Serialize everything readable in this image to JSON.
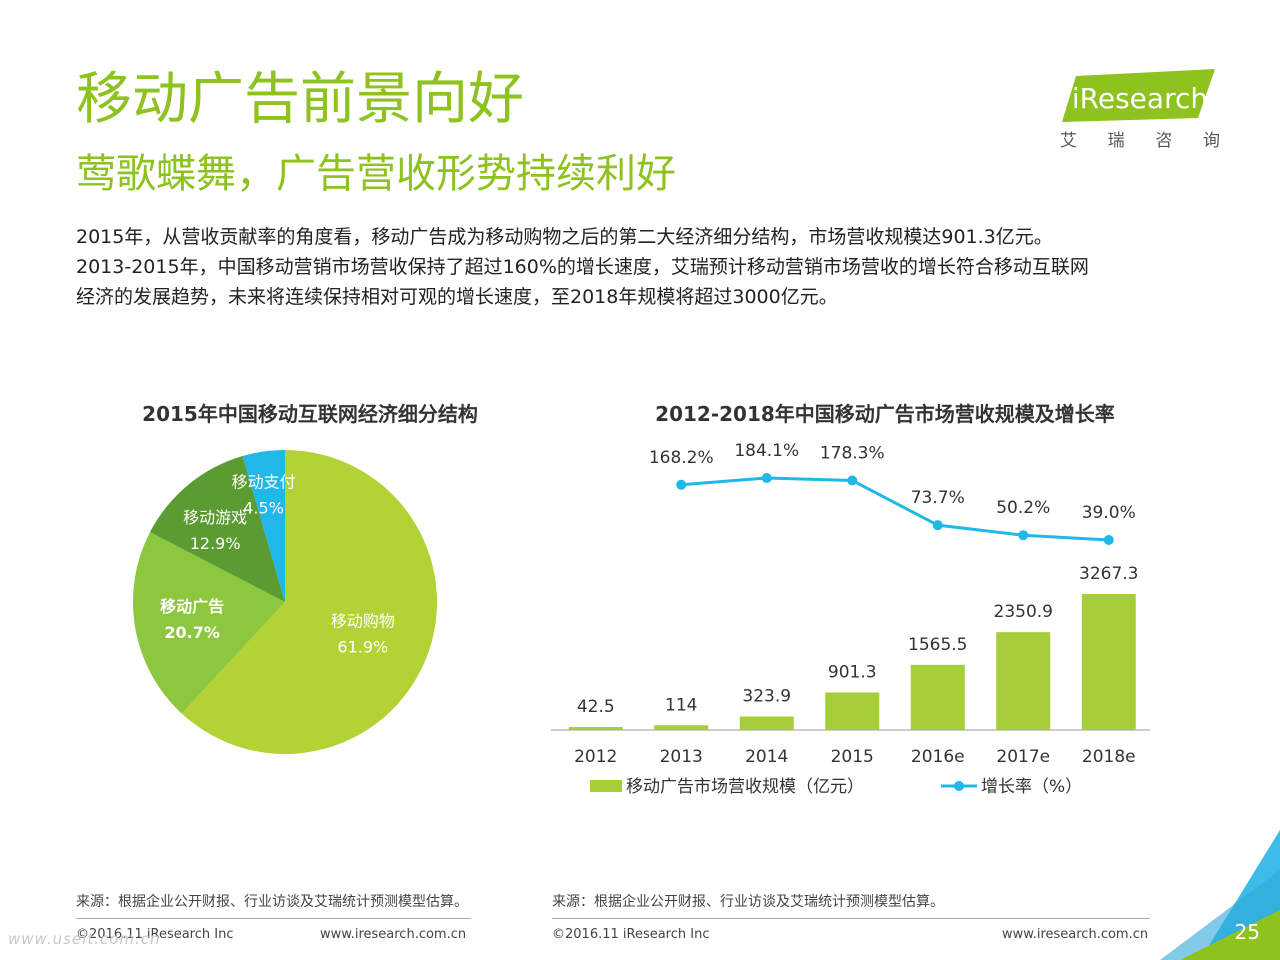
{
  "header": {
    "title": "移动广告前景向好",
    "subtitle": "莺歌蝶舞，广告营收形势持续利好",
    "paragraphs": [
      "2015年，从营收贡献率的角度看，移动广告成为移动购物之后的第二大经济细分结构，市场营收规模达901.3亿元。",
      "2013-2015年，中国移动营销市场营收保持了超过160%的增长速度，艾瑞预计移动营销市场营收的增长符合移动互联网",
      "经济的发展趋势，未来将连续保持相对可观的增长速度，至2018年规模将超过3000亿元。"
    ]
  },
  "logo": {
    "text": "iResearch",
    "cn_chars": [
      "艾",
      "瑞",
      "咨",
      "询"
    ],
    "color": "#8DC21F"
  },
  "chart_data": [
    {
      "type": "pie",
      "title": "2015年中国移动互联网经济细分结构",
      "slices": [
        {
          "label": "移动购物",
          "value": 61.9,
          "value_label": "61.9%",
          "color": "#B2D235"
        },
        {
          "label": "移动广告",
          "value": 20.7,
          "value_label": "20.7%",
          "color": "#8DC63F"
        },
        {
          "label": "移动游戏",
          "value": 12.9,
          "value_label": "12.9%",
          "color": "#5A9B32"
        },
        {
          "label": "移动支付",
          "value": 4.5,
          "value_label": "4.5%",
          "color": "#1FB8E8"
        }
      ]
    },
    {
      "type": "bar+line",
      "title": "2012-2018年中国移动广告市场营收规模及增长率",
      "categories": [
        "2012",
        "2013",
        "2014",
        "2015",
        "2016e",
        "2017e",
        "2018e"
      ],
      "series": [
        {
          "name": "移动广告市场营收规模（亿元）",
          "type": "bar",
          "color": "#A6CE39",
          "values": [
            42.5,
            114,
            323.9,
            901.3,
            1565.5,
            2350.9,
            3267.3
          ],
          "labels": [
            "42.5",
            "114",
            "323.9",
            "901.3",
            "1565.5",
            "2350.9",
            "3267.3"
          ]
        },
        {
          "name": "增长率（%）",
          "type": "line",
          "color": "#1FB8E8",
          "values": [
            null,
            168.2,
            184.1,
            178.3,
            73.7,
            50.2,
            39.0
          ],
          "labels": [
            "",
            "168.2%",
            "184.1%",
            "178.3%",
            "73.7%",
            "50.2%",
            "39.0%"
          ]
        }
      ],
      "legend_position": "bottom"
    }
  ],
  "footer": {
    "source_text": "来源：根据企业公开财报、行业访谈及艾瑞统计预测模型估算。",
    "copyright": "©2016.11 iResearch Inc",
    "website": "www.iresearch.com.cn",
    "watermark": "www.useit.com.cn",
    "page_number": "25"
  }
}
